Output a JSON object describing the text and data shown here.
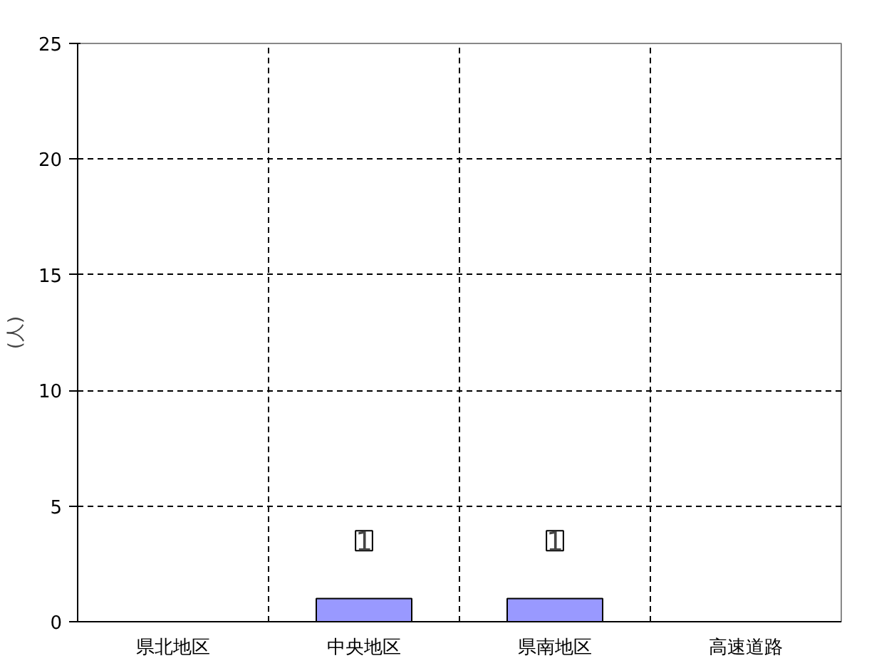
{
  "chart_data": {
    "type": "bar",
    "ylabel": "(人)",
    "categories": [
      "県北地区",
      "中央地区",
      "県南地区",
      "高速道路"
    ],
    "values": [
      0,
      1,
      1,
      0
    ],
    "color": "#9999ff",
    "value_labels": [
      null,
      "1",
      "1",
      null
    ],
    "ylim": [
      0,
      25
    ],
    "yticks": [
      0,
      5,
      10,
      15,
      20,
      25
    ],
    "grid": true
  }
}
